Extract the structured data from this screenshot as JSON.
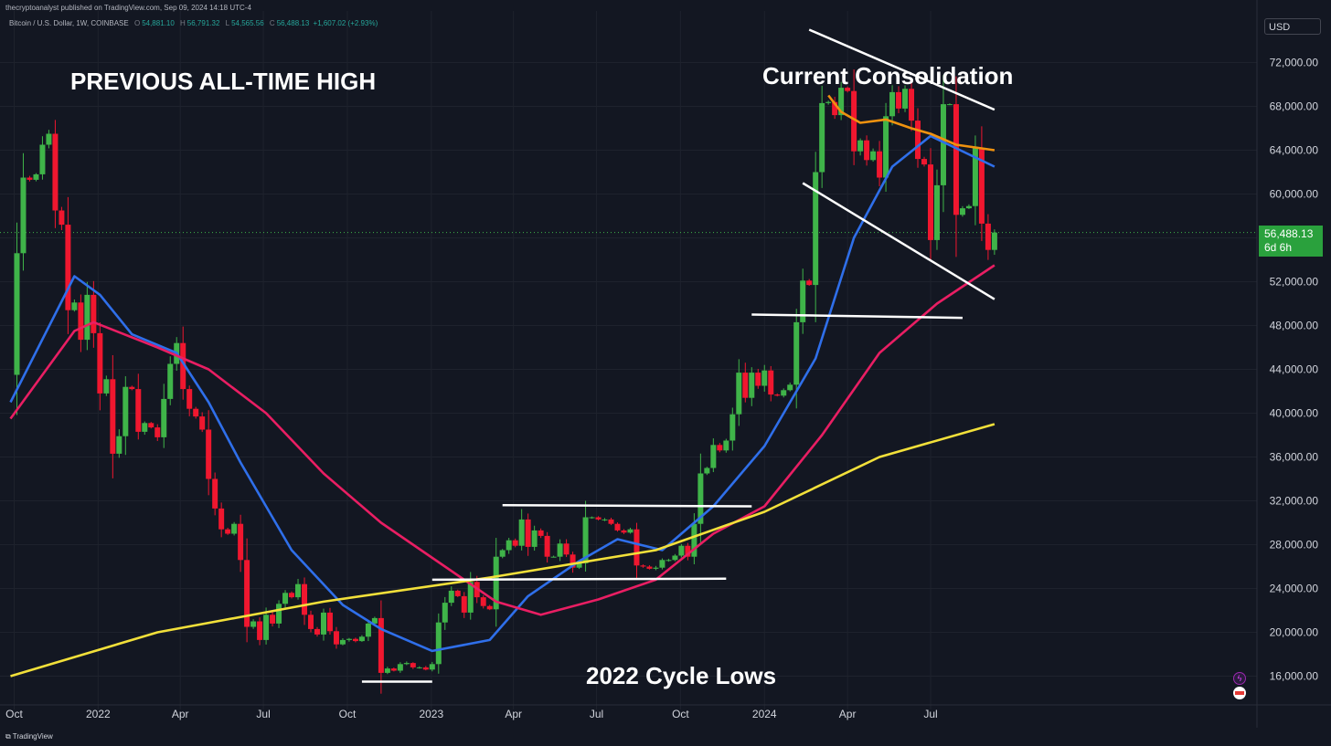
{
  "header": {
    "publisher_line": "thecryptoanalyst published on TradingView.com, Sep 09, 2024 14:18 UTC-4",
    "symbol_line": "Bitcoin / U.S. Dollar, 1W, COINBASE",
    "ohlc": [
      {
        "label": "O",
        "value": "54,881.10"
      },
      {
        "label": "H",
        "value": "56,791.32"
      },
      {
        "label": "L",
        "value": "54,565.56"
      },
      {
        "label": "C",
        "value": "56,488.13"
      }
    ],
    "change": "+1,607.02 (+2.93%)"
  },
  "annotations": {
    "ath": "PREVIOUS ALL-TIME HIGH",
    "consolidation": "Current Consolidation",
    "lows": "2022 Cycle Lows"
  },
  "price_axis": {
    "currency": "USD",
    "last_price": "56,488.13",
    "countdown": "6d 6h"
  },
  "footer": {
    "brand": "TradingView"
  },
  "colors": {
    "background": "#131722",
    "up": "#3fb449",
    "down": "#f0172f",
    "ma_blue": "#2f6fea",
    "ma_red": "#e91e63",
    "ma_yellow": "#f2e03a",
    "ma_orange": "#f0920f",
    "trendline": "#ffffff"
  },
  "chart_data": {
    "type": "candlestick",
    "title": "",
    "interval": "1W",
    "ylim": [
      15000,
      75000
    ],
    "y_scale": "linear",
    "y_ticks": [
      {
        "value": 16000,
        "label": "16,000.00"
      },
      {
        "value": 20000,
        "label": "20,000.00"
      },
      {
        "value": 24000,
        "label": "24,000.00"
      },
      {
        "value": 28000,
        "label": "28,000.00"
      },
      {
        "value": 32000,
        "label": "32,000.00"
      },
      {
        "value": 36000,
        "label": "36,000.00"
      },
      {
        "value": 40000,
        "label": "40,000.00"
      },
      {
        "value": 44000,
        "label": "44,000.00"
      },
      {
        "value": 48000,
        "label": "48,000.00"
      },
      {
        "value": 52000,
        "label": "52,000.00"
      },
      {
        "value": 56000,
        "label": "56,000.00"
      },
      {
        "value": 60000,
        "label": "60,000.00"
      },
      {
        "value": 64000,
        "label": "64,000.00"
      },
      {
        "value": 68000,
        "label": "68,000.00"
      },
      {
        "value": 72000,
        "label": "72,000.00"
      }
    ],
    "x_ticks": [
      {
        "date": "2021-10-01",
        "label": "Oct"
      },
      {
        "date": "2022-01-01",
        "label": "2022"
      },
      {
        "date": "2022-04-01",
        "label": "Apr"
      },
      {
        "date": "2022-07-01",
        "label": "Jul"
      },
      {
        "date": "2022-10-01",
        "label": "Oct"
      },
      {
        "date": "2023-01-01",
        "label": "2023"
      },
      {
        "date": "2023-04-01",
        "label": "Apr"
      },
      {
        "date": "2023-07-01",
        "label": "Jul"
      },
      {
        "date": "2023-10-01",
        "label": "Oct"
      },
      {
        "date": "2024-01-01",
        "label": "2024"
      },
      {
        "date": "2024-04-01",
        "label": "Apr"
      },
      {
        "date": "2024-07-01",
        "label": "Jul"
      }
    ],
    "grid": true,
    "price_path": [
      [
        "2021-09-27",
        43500
      ],
      [
        "2021-10-04",
        54600
      ],
      [
        "2021-10-11",
        61500
      ],
      [
        "2021-10-18",
        61300
      ],
      [
        "2021-10-25",
        61800
      ],
      [
        "2021-11-01",
        64500
      ],
      [
        "2021-11-08",
        65500
      ],
      [
        "2021-11-15",
        58500
      ],
      [
        "2021-11-22",
        57200
      ],
      [
        "2021-11-29",
        49400
      ],
      [
        "2021-12-06",
        50100
      ],
      [
        "2021-12-13",
        46700
      ],
      [
        "2021-12-20",
        50800
      ],
      [
        "2021-12-27",
        47300
      ],
      [
        "2022-01-03",
        41800
      ],
      [
        "2022-01-10",
        43100
      ],
      [
        "2022-01-17",
        36300
      ],
      [
        "2022-01-24",
        37900
      ],
      [
        "2022-01-31",
        42400
      ],
      [
        "2022-02-07",
        42200
      ],
      [
        "2022-02-14",
        38300
      ],
      [
        "2022-02-21",
        39100
      ],
      [
        "2022-02-28",
        38700
      ],
      [
        "2022-03-07",
        37800
      ],
      [
        "2022-03-14",
        41300
      ],
      [
        "2022-03-21",
        44500
      ],
      [
        "2022-03-28",
        46400
      ],
      [
        "2022-04-04",
        42200
      ],
      [
        "2022-04-11",
        40400
      ],
      [
        "2022-04-18",
        39700
      ],
      [
        "2022-04-25",
        38500
      ],
      [
        "2022-05-02",
        34000
      ],
      [
        "2022-05-09",
        31300
      ],
      [
        "2022-05-16",
        29400
      ],
      [
        "2022-05-23",
        29000
      ],
      [
        "2022-05-30",
        29900
      ],
      [
        "2022-06-06",
        26600
      ],
      [
        "2022-06-13",
        20500
      ],
      [
        "2022-06-20",
        21000
      ],
      [
        "2022-06-27",
        19300
      ],
      [
        "2022-07-04",
        21600
      ],
      [
        "2022-07-11",
        20800
      ],
      [
        "2022-07-18",
        22600
      ],
      [
        "2022-07-25",
        23600
      ],
      [
        "2022-08-01",
        23200
      ],
      [
        "2022-08-08",
        24400
      ],
      [
        "2022-08-15",
        21600
      ],
      [
        "2022-08-22",
        20300
      ],
      [
        "2022-08-29",
        19800
      ],
      [
        "2022-09-05",
        21800
      ],
      [
        "2022-09-12",
        20100
      ],
      [
        "2022-09-19",
        18900
      ],
      [
        "2022-09-26",
        19300
      ],
      [
        "2022-10-03",
        19400
      ],
      [
        "2022-10-10",
        19200
      ],
      [
        "2022-10-17",
        19600
      ],
      [
        "2022-10-24",
        20800
      ],
      [
        "2022-10-31",
        21300
      ],
      [
        "2022-11-07",
        16300
      ],
      [
        "2022-11-14",
        16700
      ],
      [
        "2022-11-21",
        16500
      ],
      [
        "2022-11-28",
        17100
      ],
      [
        "2022-12-05",
        17200
      ],
      [
        "2022-12-12",
        16800
      ],
      [
        "2022-12-19",
        16800
      ],
      [
        "2022-12-26",
        16600
      ],
      [
        "2023-01-02",
        17100
      ],
      [
        "2023-01-09",
        20900
      ],
      [
        "2023-01-16",
        22700
      ],
      [
        "2023-01-23",
        23800
      ],
      [
        "2023-01-30",
        23300
      ],
      [
        "2023-02-06",
        21800
      ],
      [
        "2023-02-13",
        24600
      ],
      [
        "2023-02-20",
        23200
      ],
      [
        "2023-02-27",
        22400
      ],
      [
        "2023-03-06",
        22100
      ],
      [
        "2023-03-13",
        26900
      ],
      [
        "2023-03-20",
        27500
      ],
      [
        "2023-03-27",
        28400
      ],
      [
        "2023-04-03",
        27900
      ],
      [
        "2023-04-10",
        30300
      ],
      [
        "2023-04-17",
        27800
      ],
      [
        "2023-04-24",
        29300
      ],
      [
        "2023-05-01",
        28800
      ],
      [
        "2023-05-08",
        26900
      ],
      [
        "2023-05-15",
        26900
      ],
      [
        "2023-05-22",
        28100
      ],
      [
        "2023-05-29",
        27100
      ],
      [
        "2023-06-05",
        25900
      ],
      [
        "2023-06-12",
        26300
      ],
      [
        "2023-06-19",
        30500
      ],
      [
        "2023-06-26",
        30500
      ],
      [
        "2023-07-03",
        30300
      ],
      [
        "2023-07-10",
        30300
      ],
      [
        "2023-07-17",
        29900
      ],
      [
        "2023-07-24",
        29300
      ],
      [
        "2023-07-31",
        29100
      ],
      [
        "2023-08-07",
        29400
      ],
      [
        "2023-08-14",
        26100
      ],
      [
        "2023-08-21",
        26000
      ],
      [
        "2023-08-28",
        25800
      ],
      [
        "2023-09-04",
        25900
      ],
      [
        "2023-09-11",
        26600
      ],
      [
        "2023-09-18",
        26600
      ],
      [
        "2023-09-25",
        27000
      ],
      [
        "2023-10-02",
        27900
      ],
      [
        "2023-10-09",
        26900
      ],
      [
        "2023-10-16",
        29900
      ],
      [
        "2023-10-23",
        34500
      ],
      [
        "2023-10-30",
        35000
      ],
      [
        "2023-11-06",
        37100
      ],
      [
        "2023-11-13",
        36600
      ],
      [
        "2023-11-20",
        37500
      ],
      [
        "2023-11-27",
        39900
      ],
      [
        "2023-12-04",
        43700
      ],
      [
        "2023-12-11",
        41400
      ],
      [
        "2023-12-18",
        43700
      ],
      [
        "2023-12-25",
        42500
      ],
      [
        "2024-01-01",
        43900
      ],
      [
        "2024-01-08",
        41700
      ],
      [
        "2024-01-15",
        41600
      ],
      [
        "2024-01-22",
        42100
      ],
      [
        "2024-01-29",
        42600
      ],
      [
        "2024-02-05",
        48300
      ],
      [
        "2024-02-12",
        52100
      ],
      [
        "2024-02-19",
        51700
      ],
      [
        "2024-02-26",
        62000
      ],
      [
        "2024-03-04",
        68300
      ],
      [
        "2024-03-11",
        68400
      ],
      [
        "2024-03-18",
        67200
      ],
      [
        "2024-03-25",
        69700
      ],
      [
        "2024-04-01",
        69400
      ],
      [
        "2024-04-08",
        63900
      ],
      [
        "2024-04-15",
        64900
      ],
      [
        "2024-04-22",
        63100
      ],
      [
        "2024-04-29",
        63900
      ],
      [
        "2024-05-06",
        61500
      ],
      [
        "2024-05-13",
        67100
      ],
      [
        "2024-05-20",
        69300
      ],
      [
        "2024-05-27",
        67800
      ],
      [
        "2024-06-03",
        69600
      ],
      [
        "2024-06-10",
        66700
      ],
      [
        "2024-06-17",
        63200
      ],
      [
        "2024-06-24",
        62700
      ],
      [
        "2024-07-01",
        55800
      ],
      [
        "2024-07-08",
        60800
      ],
      [
        "2024-07-15",
        68200
      ],
      [
        "2024-07-22",
        68200
      ],
      [
        "2024-07-29",
        58100
      ],
      [
        "2024-08-05",
        58700
      ],
      [
        "2024-08-12",
        58900
      ],
      [
        "2024-08-19",
        64200
      ],
      [
        "2024-08-26",
        57300
      ],
      [
        "2024-09-02",
        54900
      ],
      [
        "2024-09-09",
        56488
      ]
    ],
    "moving_averages": [
      {
        "color": "#2f6fea",
        "points": [
          [
            "2021-09-27",
            41000
          ],
          [
            "2021-12-06",
            52500
          ],
          [
            "2022-01-03",
            50800
          ],
          [
            "2022-02-07",
            47200
          ],
          [
            "2022-03-28",
            45500
          ],
          [
            "2022-05-02",
            41000
          ],
          [
            "2022-06-06",
            35500
          ],
          [
            "2022-08-01",
            27500
          ],
          [
            "2022-09-26",
            22500
          ],
          [
            "2022-11-07",
            20300
          ],
          [
            "2023-01-02",
            18300
          ],
          [
            "2023-03-06",
            19300
          ],
          [
            "2023-04-17",
            23300
          ],
          [
            "2023-06-12",
            26500
          ],
          [
            "2023-07-24",
            28500
          ],
          [
            "2023-09-11",
            27500
          ],
          [
            "2023-11-06",
            31500
          ],
          [
            "2024-01-01",
            37000
          ],
          [
            "2024-02-26",
            45000
          ],
          [
            "2024-04-08",
            56000
          ],
          [
            "2024-05-20",
            62500
          ],
          [
            "2024-07-01",
            65300
          ],
          [
            "2024-09-09",
            62500
          ]
        ]
      },
      {
        "color": "#e91e63",
        "points": [
          [
            "2021-09-27",
            39500
          ],
          [
            "2021-12-06",
            47500
          ],
          [
            "2021-12-27",
            48300
          ],
          [
            "2022-03-07",
            46000
          ],
          [
            "2022-05-02",
            44000
          ],
          [
            "2022-07-04",
            40000
          ],
          [
            "2022-09-05",
            34500
          ],
          [
            "2022-11-07",
            30000
          ],
          [
            "2023-01-16",
            26000
          ],
          [
            "2023-03-13",
            22800
          ],
          [
            "2023-05-01",
            21600
          ],
          [
            "2023-07-03",
            23000
          ],
          [
            "2023-09-04",
            24800
          ],
          [
            "2023-11-06",
            29000
          ],
          [
            "2024-01-01",
            31500
          ],
          [
            "2024-03-04",
            38000
          ],
          [
            "2024-05-06",
            45500
          ],
          [
            "2024-07-08",
            50000
          ],
          [
            "2024-09-09",
            53500
          ]
        ]
      },
      {
        "color": "#f2e03a",
        "points": [
          [
            "2021-09-27",
            16000
          ],
          [
            "2022-03-07",
            20000
          ],
          [
            "2022-09-05",
            22800
          ],
          [
            "2023-03-06",
            25000
          ],
          [
            "2023-09-04",
            27500
          ],
          [
            "2024-01-01",
            31000
          ],
          [
            "2024-05-06",
            36000
          ],
          [
            "2024-09-09",
            39000
          ]
        ]
      },
      {
        "color": "#f0920f",
        "points": [
          [
            "2024-03-11",
            69000
          ],
          [
            "2024-03-25",
            67500
          ],
          [
            "2024-04-15",
            66500
          ],
          [
            "2024-05-13",
            66800
          ],
          [
            "2024-06-10",
            66000
          ],
          [
            "2024-07-01",
            65500
          ],
          [
            "2024-07-29",
            64500
          ],
          [
            "2024-09-09",
            64000
          ]
        ]
      }
    ],
    "trendlines": [
      {
        "from": [
          "2024-02-19",
          75000
        ],
        "to": [
          "2024-09-09",
          67700
        ]
      },
      {
        "from": [
          "2024-02-12",
          61000
        ],
        "to": [
          "2024-09-09",
          50400
        ]
      },
      {
        "from": [
          "2023-12-18",
          49000
        ],
        "to": [
          "2024-08-05",
          48700
        ]
      },
      {
        "from": [
          "2023-03-20",
          31600
        ],
        "to": [
          "2023-12-18",
          31500
        ]
      },
      {
        "from": [
          "2023-01-02",
          24800
        ],
        "to": [
          "2023-11-20",
          24900
        ]
      },
      {
        "from": [
          "2022-10-17",
          15500
        ],
        "to": [
          "2023-01-02",
          15500
        ]
      }
    ]
  }
}
